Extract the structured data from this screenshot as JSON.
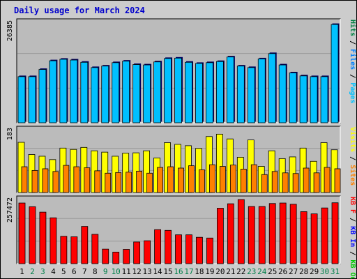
{
  "title": "Daily usage for March 2024",
  "colors": {
    "background": "#cccccc",
    "plot_bg": "#bbbbbb",
    "grid": "#999999",
    "pages": "#00c0ff",
    "files": "#0080ff",
    "hits": "#008040",
    "visits": "#ffff00",
    "sites": "#ff8000",
    "kb_out": "#00cc00",
    "kb_in": "#0000ff",
    "kb_f": "#ff0000",
    "weekday": "#000000",
    "weekend": "#00804a"
  },
  "chart_data": [
    {
      "type": "bar",
      "title": "",
      "ymax_label": "26385",
      "ylim": [
        0,
        26385
      ],
      "legend": [
        {
          "name": "Hits",
          "color": "#008040"
        },
        {
          "name": "Files",
          "color": "#0080ff"
        },
        {
          "name": "Pages",
          "color": "#00c0ff"
        }
      ],
      "categories": [
        "1",
        "2",
        "3",
        "4",
        "5",
        "6",
        "7",
        "8",
        "9",
        "10",
        "11",
        "12",
        "13",
        "14",
        "15",
        "16",
        "17",
        "18",
        "19",
        "20",
        "21",
        "22",
        "23",
        "24",
        "25",
        "26",
        "27",
        "28",
        "29",
        "30",
        "31"
      ],
      "series": [
        {
          "name": "Hits",
          "values": [
            12200,
            12200,
            14100,
            16400,
            16800,
            16600,
            16000,
            14600,
            15000,
            15900,
            16300,
            15400,
            15300,
            16100,
            17000,
            17100,
            16000,
            15700,
            15900,
            16200,
            17400,
            15000,
            14600,
            16900,
            18300,
            15300,
            13200,
            12400,
            12200,
            12200,
            26000
          ]
        },
        {
          "name": "Files",
          "values": [
            12200,
            12200,
            14100,
            16400,
            16800,
            16600,
            16000,
            14600,
            15000,
            15900,
            16300,
            15400,
            15300,
            16100,
            17000,
            17100,
            16000,
            15700,
            15900,
            16200,
            17400,
            15000,
            14600,
            16900,
            18300,
            15300,
            13200,
            12400,
            12200,
            12200,
            26000
          ]
        },
        {
          "name": "Pages",
          "values": [
            12200,
            12200,
            14100,
            16400,
            16800,
            16600,
            16000,
            14600,
            15000,
            15900,
            16300,
            15400,
            15300,
            16100,
            17000,
            17100,
            16000,
            15700,
            15900,
            16200,
            17400,
            15000,
            14600,
            16900,
            18300,
            15300,
            13200,
            12400,
            12200,
            12200,
            26000
          ]
        }
      ]
    },
    {
      "type": "bar",
      "title": "",
      "ymax_label": "183",
      "ylim": [
        0,
        183
      ],
      "legend": [
        {
          "name": "Visits",
          "color": "#ffff00"
        },
        {
          "name": "Sites",
          "color": "#ff8000"
        }
      ],
      "categories": [
        "1",
        "2",
        "3",
        "4",
        "5",
        "6",
        "7",
        "8",
        "9",
        "10",
        "11",
        "12",
        "13",
        "14",
        "15",
        "16",
        "17",
        "18",
        "19",
        "20",
        "21",
        "22",
        "23",
        "24",
        "25",
        "26",
        "27",
        "28",
        "29",
        "30",
        "31"
      ],
      "series": [
        {
          "name": "Visits",
          "values": [
            148,
            112,
            107,
            97,
            131,
            127,
            133,
            123,
            119,
            107,
            116,
            117,
            123,
            102,
            147,
            142,
            138,
            130,
            165,
            172,
            158,
            104,
            155,
            77,
            123,
            100,
            105,
            131,
            92,
            147,
            126
          ]
        },
        {
          "name": "Sites",
          "values": [
            76,
            65,
            70,
            62,
            80,
            76,
            73,
            64,
            57,
            59,
            60,
            63,
            57,
            74,
            76,
            72,
            79,
            67,
            82,
            77,
            81,
            69,
            82,
            53,
            62,
            58,
            56,
            72,
            58,
            74,
            70
          ]
        }
      ]
    },
    {
      "type": "bar",
      "title": "",
      "ymax_label": "257472",
      "ylim": [
        0,
        257472
      ],
      "legend": [
        {
          "name": "KB F",
          "color": "#ff0000"
        },
        {
          "name": "KB In",
          "color": "#0000ff"
        },
        {
          "name": "KB Out",
          "color": "#00cc00"
        }
      ],
      "categories": [
        "1",
        "2",
        "3",
        "4",
        "5",
        "6",
        "7",
        "8",
        "9",
        "10",
        "11",
        "12",
        "13",
        "14",
        "15",
        "16",
        "17",
        "18",
        "19",
        "20",
        "21",
        "22",
        "23",
        "24",
        "25",
        "26",
        "27",
        "28",
        "29",
        "30",
        "31"
      ],
      "series": [
        {
          "name": "KB F",
          "values": [
            246000,
            231000,
            209000,
            186000,
            111000,
            109000,
            151000,
            119000,
            59000,
            47000,
            58000,
            88000,
            93000,
            138000,
            135000,
            117000,
            117000,
            107000,
            104000,
            225000,
            243000,
            260000,
            232000,
            232000,
            244000,
            246000,
            241000,
            211000,
            202000,
            226000,
            247000
          ]
        }
      ]
    }
  ],
  "days": [
    "1",
    "2",
    "3",
    "4",
    "5",
    "6",
    "7",
    "8",
    "9",
    "10",
    "11",
    "12",
    "13",
    "14",
    "15",
    "16",
    "17",
    "18",
    "19",
    "20",
    "21",
    "22",
    "23",
    "24",
    "25",
    "26",
    "27",
    "28",
    "29",
    "30",
    "31"
  ],
  "weekend_days": [
    2,
    3,
    9,
    10,
    16,
    17,
    23,
    24,
    30,
    31
  ]
}
